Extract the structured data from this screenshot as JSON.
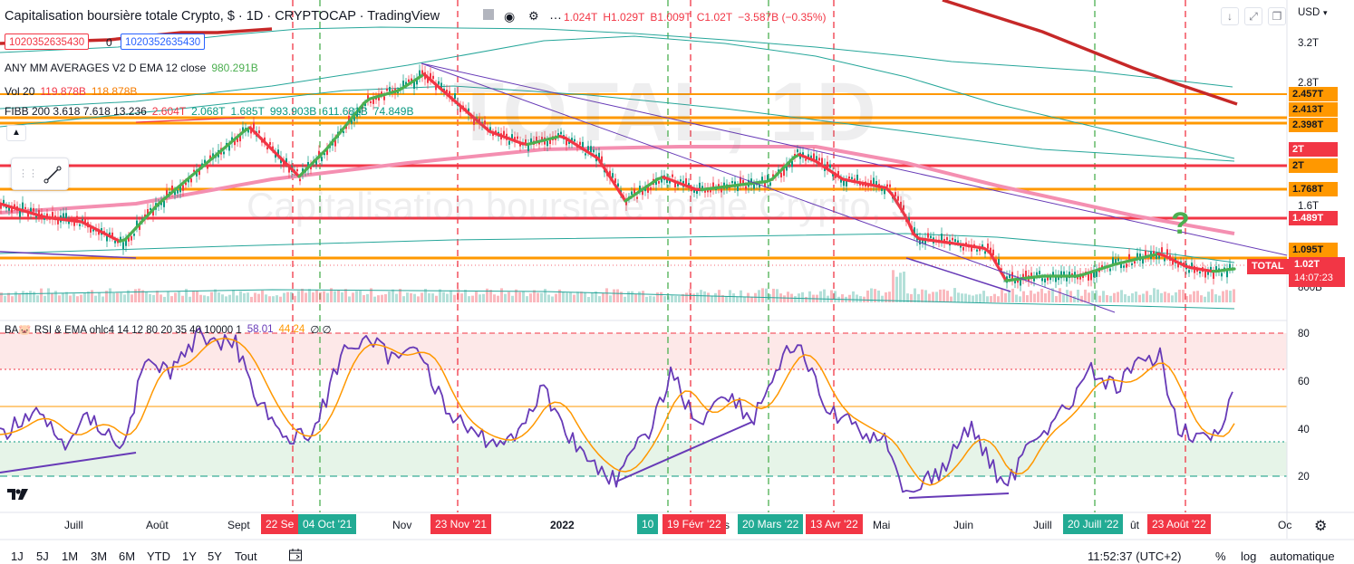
{
  "header": {
    "title": "Capitalisation boursière totale Crypto, $ · 1D · CRYPTOCAP · TradingView",
    "ohlc": [
      "1.024T",
      "H1.029T",
      "B1.009T",
      "C1.02T",
      "−3.587B (−0.35%)"
    ],
    "input_left": "1020352635430",
    "input_mid": "0",
    "input_right": "1020352635430"
  },
  "legends": {
    "mm": {
      "label": "ANY MM AVERAGES V2 D EMA 12 close",
      "value": "980.291B"
    },
    "vol": {
      "label": "Vol 20",
      "value1": "119.878B",
      "value2": "118.878B"
    },
    "fibb": {
      "label": "FIBB 200 3.618 7.618 13.236",
      "values": [
        "2.604T",
        "2.068T",
        "1.685T",
        "993.903B",
        "611.681B",
        "74.849B"
      ]
    },
    "rsi": {
      "label": "BA🐷 RSI & EMA ohlc4 14 12 80 20 35 40 10000 1",
      "value1": "58.01",
      "value2": "44.24",
      "value3": "∅ ∅"
    }
  },
  "watermark": {
    "big": "TOTAL, 1D",
    "sub": "Capitalisation boursière totale Crypto, $"
  },
  "annotation": "?",
  "price_axis": {
    "currency": "USD",
    "ticks": [
      "3.2T",
      "2.8T",
      "1.6T",
      "800B"
    ],
    "labels": [
      {
        "text": "2.457T",
        "color": "#ff9800",
        "fg": "#131722"
      },
      {
        "text": "2.413T",
        "color": "#ff9800",
        "fg": "#131722"
      },
      {
        "text": "2.398T",
        "color": "#ff9800",
        "fg": "#131722"
      },
      {
        "text": "2T",
        "color": "#f23645",
        "fg": "#ffffff"
      },
      {
        "text": "2T",
        "color": "#ff9800",
        "fg": "#131722"
      },
      {
        "text": "1.768T",
        "color": "#ff9800",
        "fg": "#131722"
      },
      {
        "text": "1.489T",
        "color": "#f23645",
        "fg": "#ffffff"
      },
      {
        "text": "1.095T",
        "color": "#ff9800",
        "fg": "#131722"
      }
    ],
    "current_symbol": "TOTAL",
    "current_price": "1.02T",
    "countdown": "14:07:23"
  },
  "rsi_axis": {
    "ticks": [
      "80",
      "60",
      "40",
      "20"
    ]
  },
  "time_axis": {
    "labels": [
      "Juill",
      "Août",
      "Sept",
      "Nov",
      "2022",
      "Mai",
      "Juin",
      "Juill",
      "Oc"
    ],
    "pills": [
      {
        "text": "22 Se",
        "color": "#f23645"
      },
      {
        "text": "04 Oct '21",
        "color": "#22ab94"
      },
      {
        "text": "23 Nov '21",
        "color": "#f23645"
      },
      {
        "text": "10",
        "color": "#22ab94"
      },
      {
        "text": "19 Févr '22",
        "color": "#f23645"
      },
      {
        "text": "20 Mars '22",
        "color": "#22ab94"
      },
      {
        "text": "13 Avr '22",
        "color": "#f23645"
      },
      {
        "text": "20 Juill '22",
        "color": "#22ab94"
      },
      {
        "text": "23 Août '22",
        "color": "#f23645"
      }
    ],
    "extra_labels": [
      "ût",
      "s"
    ]
  },
  "bottom_bar": {
    "ranges": [
      "1J",
      "5J",
      "1M",
      "3M",
      "6M",
      "YTD",
      "1Y",
      "5Y",
      "Tout"
    ],
    "clock": "11:52:37 (UTC+2)",
    "percent": "%",
    "log": "log",
    "auto": "automatique"
  },
  "colors": {
    "green": "#4caf50",
    "red": "#f23645",
    "orange": "#ff9800",
    "purple": "#673ab7",
    "teal": "#26a69a"
  }
}
